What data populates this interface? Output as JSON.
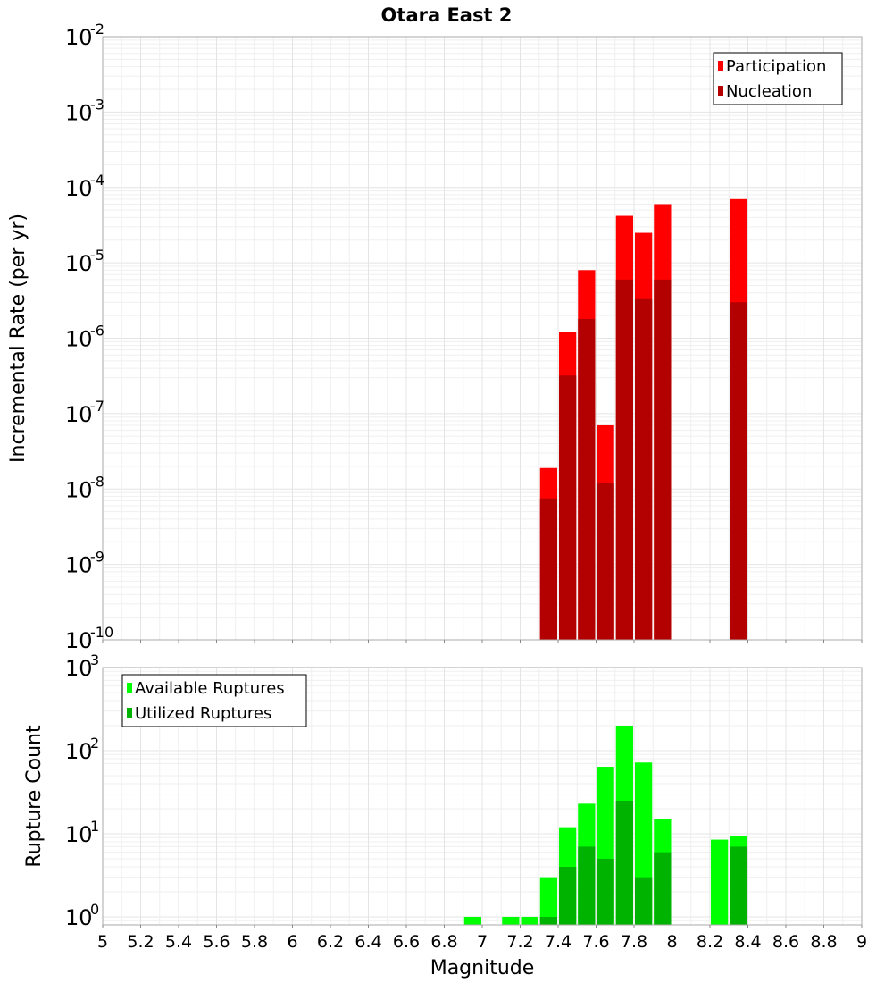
{
  "title": "Otara East 2",
  "xlabel": "Magnitude",
  "x_tick_labels": [
    "5",
    "5.2",
    "5.4",
    "5.6",
    "5.8",
    "6",
    "6.2",
    "6.4",
    "6.6",
    "6.8",
    "7",
    "7.2",
    "7.4",
    "7.6",
    "7.8",
    "8",
    "8.2",
    "8.4",
    "8.6",
    "8.8",
    "9"
  ],
  "colors": {
    "participation": "#ff0000",
    "nucleation": "#b30000",
    "available": "#00ff00",
    "utilized": "#00b300",
    "grid_major": "#e4e4e4",
    "grid_minor": "#efefef",
    "frame": "#aaaaaa"
  },
  "chart_data": [
    {
      "type": "bar",
      "title": "Otara East 2",
      "xlabel": "",
      "ylabel": "Incremental Rate (per yr)",
      "y_scale": "log",
      "xlim": [
        5,
        9
      ],
      "ylim": [
        1e-10,
        0.01
      ],
      "y_tick_exponents": [
        -10,
        -9,
        -8,
        -7,
        -6,
        -5,
        -4,
        -3,
        -2
      ],
      "grid": true,
      "legend_position": "top-right",
      "legend": [
        "Participation",
        "Nucleation"
      ],
      "series": [
        {
          "name": "Participation",
          "x": [
            7.35,
            7.45,
            7.55,
            7.65,
            7.75,
            7.85,
            7.95,
            8.35
          ],
          "values": [
            1.9e-08,
            1.2e-06,
            8e-06,
            7e-08,
            4.2e-05,
            2.5e-05,
            6e-05,
            7e-05
          ]
        },
        {
          "name": "Nucleation",
          "x": [
            7.35,
            7.45,
            7.55,
            7.65,
            7.75,
            7.85,
            7.95,
            8.35
          ],
          "values": [
            7.5e-09,
            3.2e-07,
            1.8e-06,
            1.2e-08,
            6e-06,
            3.3e-06,
            6e-06,
            3e-06
          ]
        }
      ]
    },
    {
      "type": "bar",
      "title": "",
      "xlabel": "Magnitude",
      "ylabel": "Rupture Count",
      "y_scale": "log",
      "xlim": [
        5,
        9
      ],
      "ylim": [
        0.8,
        1000
      ],
      "y_tick_exponents": [
        0,
        1,
        2,
        3
      ],
      "grid": true,
      "legend_position": "top-left",
      "legend": [
        "Available Ruptures",
        "Utilized Ruptures"
      ],
      "series": [
        {
          "name": "Available Ruptures",
          "x": [
            6.95,
            7.15,
            7.25,
            7.35,
            7.45,
            7.55,
            7.65,
            7.75,
            7.85,
            7.95,
            8.25,
            8.35
          ],
          "values": [
            1,
            1,
            1,
            3,
            12,
            23,
            64,
            200,
            72,
            15,
            8.5,
            9.5
          ]
        },
        {
          "name": "Utilized Ruptures",
          "x": [
            7.35,
            7.45,
            7.55,
            7.65,
            7.75,
            7.85,
            7.95,
            8.35
          ],
          "values": [
            1,
            4,
            7,
            5,
            25,
            3,
            6,
            7
          ]
        }
      ]
    }
  ]
}
